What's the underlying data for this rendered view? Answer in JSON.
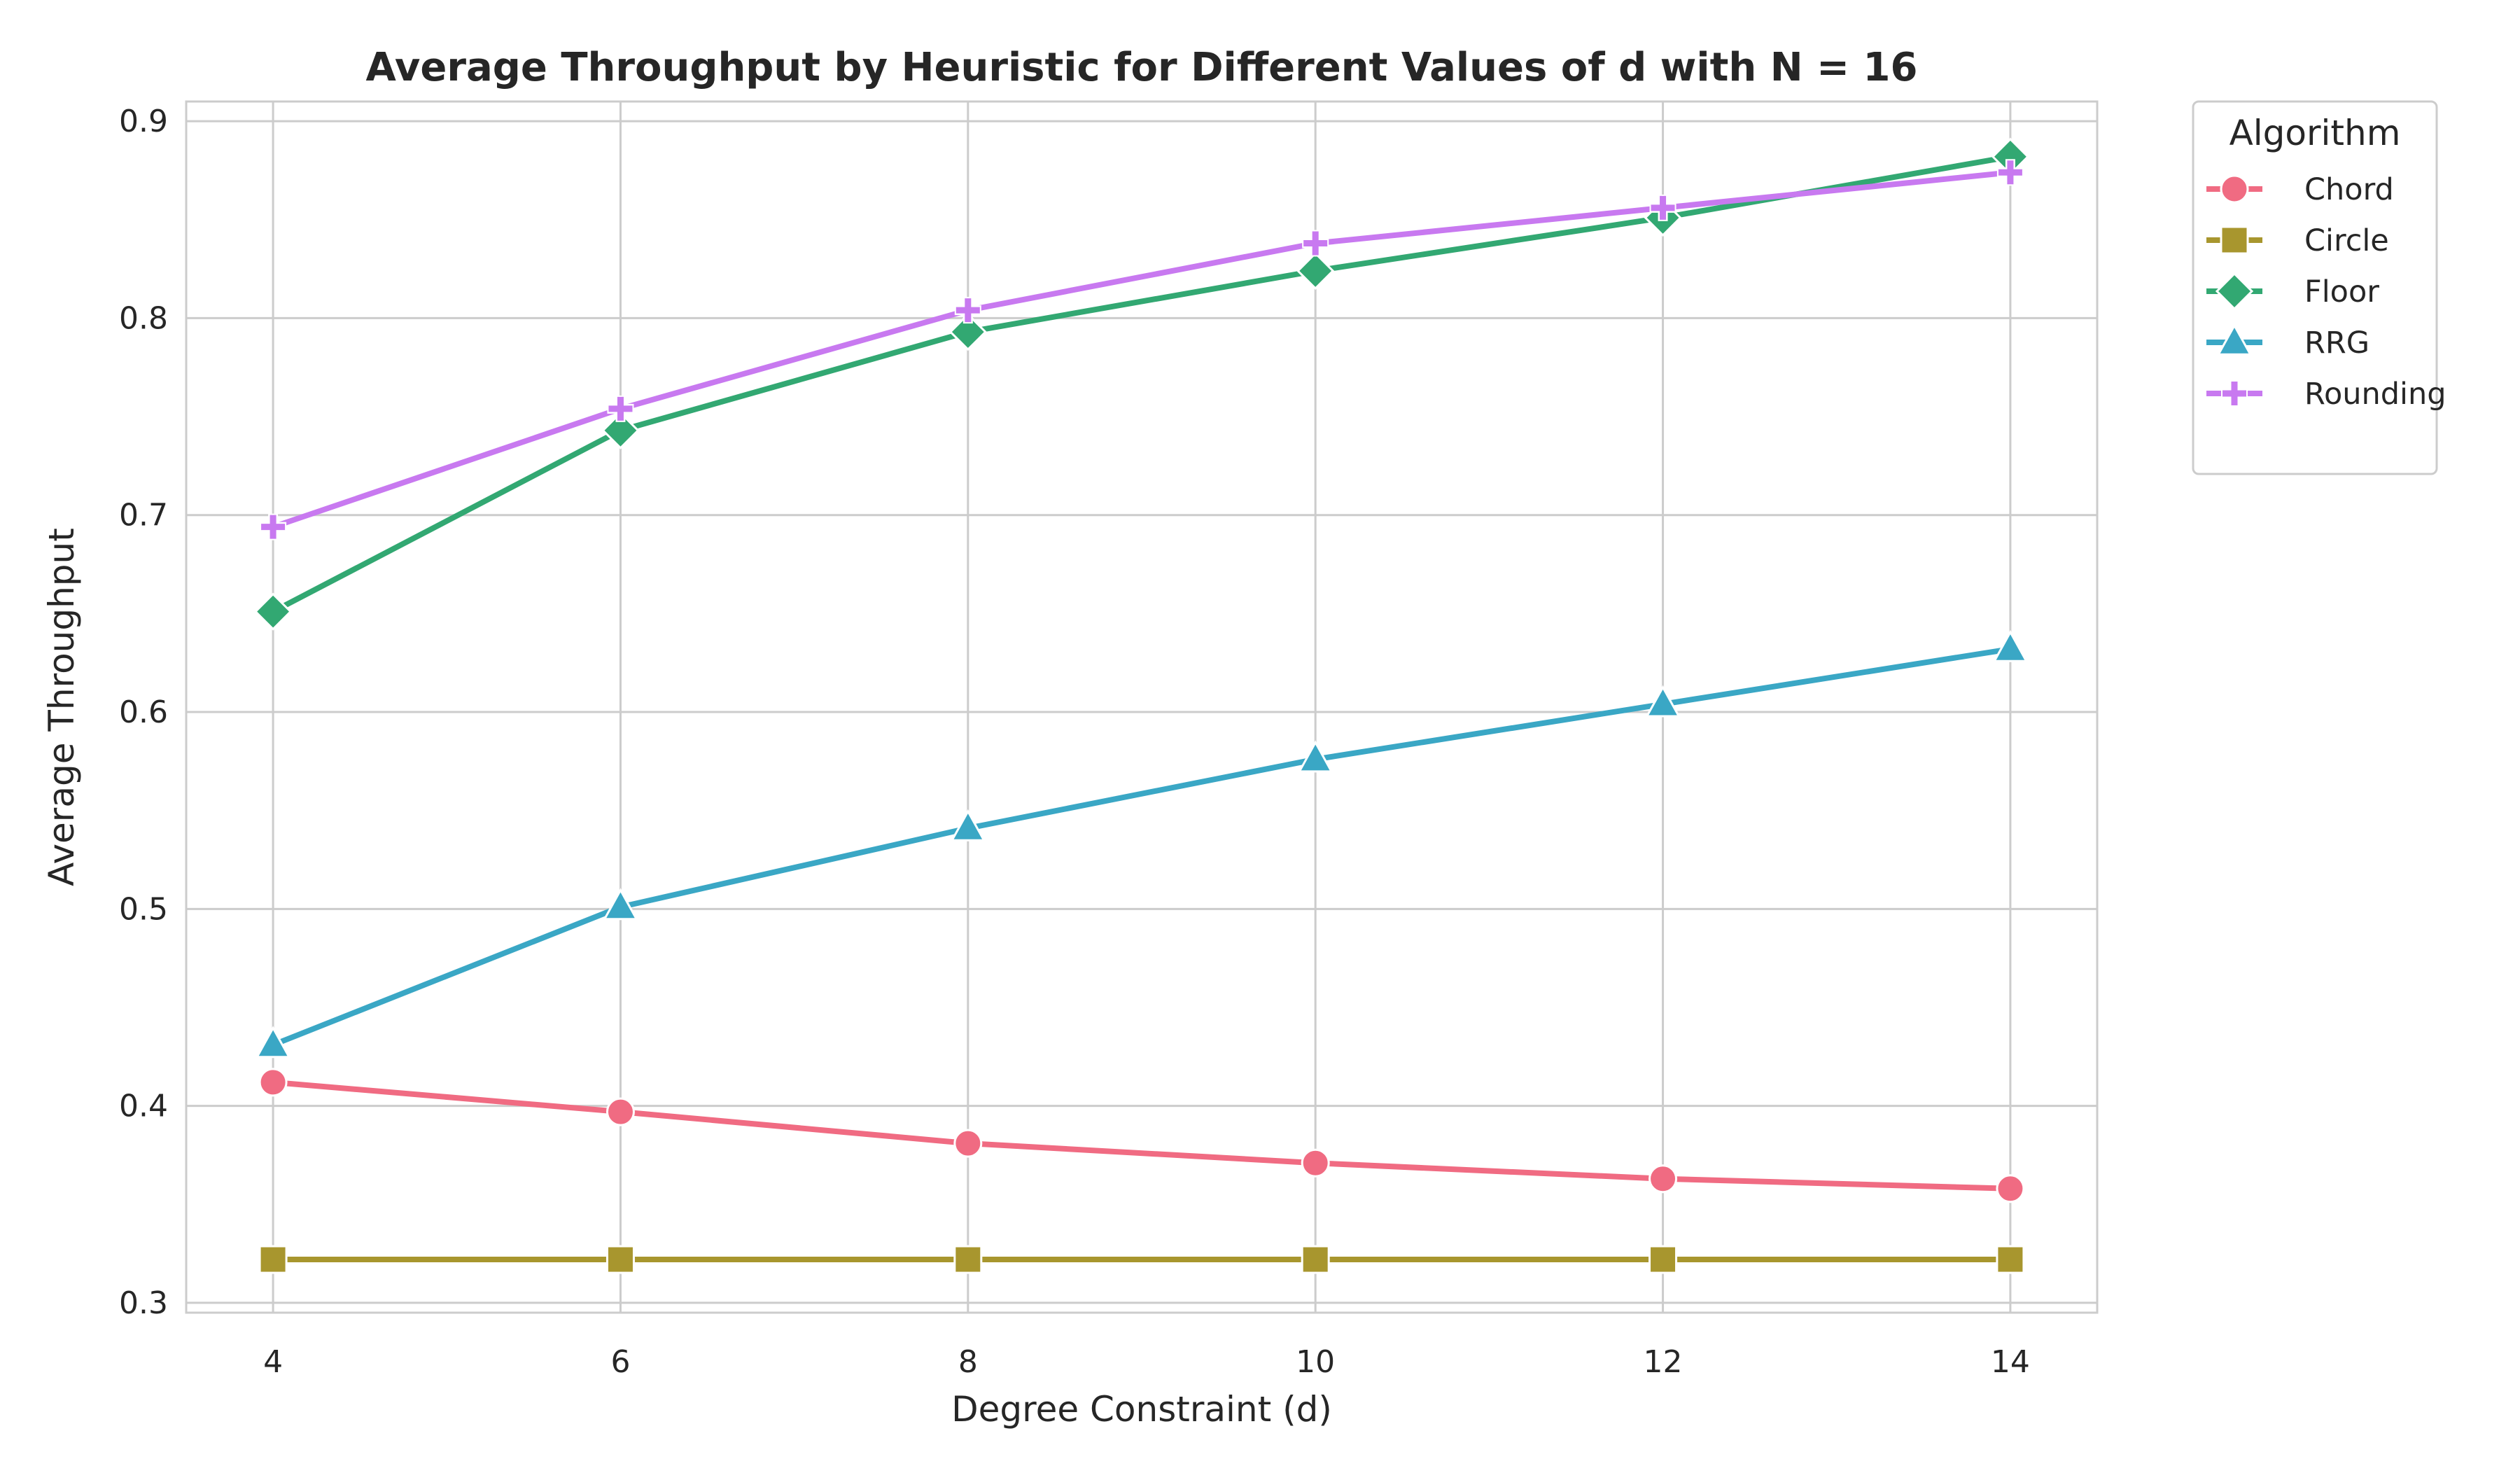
{
  "chart_data": {
    "type": "line",
    "title": "Average Throughput by Heuristic for Different Values of d with N = 16",
    "xlabel": "Degree Constraint (d)",
    "ylabel": "Average Throughput",
    "x": [
      4,
      6,
      8,
      10,
      12,
      14
    ],
    "x_ticks": [
      4,
      6,
      8,
      10,
      12,
      14
    ],
    "y_ticks": [
      0.3,
      0.4,
      0.5,
      0.6,
      0.7,
      0.8,
      0.9
    ],
    "xlim": [
      3.5,
      14.5
    ],
    "ylim": [
      0.295,
      0.91
    ],
    "grid": true,
    "legend": {
      "title": "Algorithm",
      "placement": "outside-top-right"
    },
    "series": [
      {
        "name": "Chord",
        "color": "#f06b82",
        "marker": "circle",
        "values": [
          0.412,
          0.397,
          0.381,
          0.371,
          0.363,
          0.358
        ]
      },
      {
        "name": "Circle",
        "color": "#a8962e",
        "marker": "square",
        "values": [
          0.322,
          0.322,
          0.322,
          0.322,
          0.322,
          0.322
        ]
      },
      {
        "name": "Floor",
        "color": "#32a872",
        "marker": "diamond",
        "values": [
          0.651,
          0.743,
          0.793,
          0.824,
          0.851,
          0.882
        ]
      },
      {
        "name": "RRG",
        "color": "#3aa7c5",
        "marker": "triangle",
        "values": [
          0.431,
          0.501,
          0.541,
          0.576,
          0.604,
          0.632
        ]
      },
      {
        "name": "Rounding",
        "color": "#c879f0",
        "marker": "plus",
        "values": [
          0.694,
          0.754,
          0.804,
          0.838,
          0.856,
          0.874
        ]
      }
    ]
  }
}
